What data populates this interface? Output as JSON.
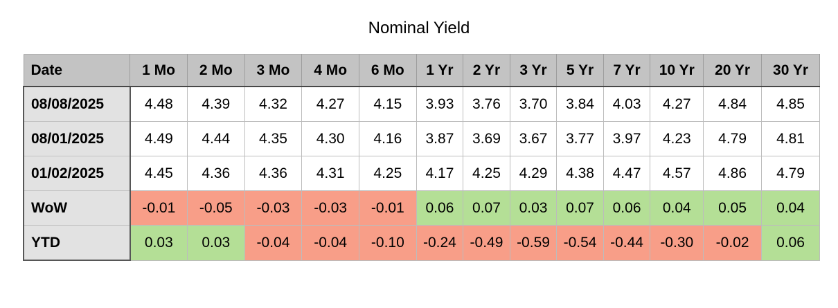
{
  "title": "Nominal Yield",
  "colors": {
    "header_bg": "#c3c3c3",
    "row_header_bg": "#e2e2e2",
    "positive_bg": "#b4df96",
    "negative_bg": "#f89e88",
    "border_dark": "#565656",
    "border_light": "#bcbcbc"
  },
  "chart_data": {
    "type": "table",
    "title": "Nominal Yield",
    "columns": [
      "Date",
      "1 Mo",
      "2 Mo",
      "3 Mo",
      "4 Mo",
      "6 Mo",
      "1 Yr",
      "2 Yr",
      "3 Yr",
      "5 Yr",
      "7 Yr",
      "10 Yr",
      "20 Yr",
      "30 Yr"
    ],
    "rows": [
      {
        "label": "08/08/2025",
        "type": "plain",
        "values": [
          "4.48",
          "4.39",
          "4.32",
          "4.27",
          "4.15",
          "3.93",
          "3.76",
          "3.70",
          "3.84",
          "4.03",
          "4.27",
          "4.84",
          "4.85"
        ]
      },
      {
        "label": "08/01/2025",
        "type": "plain",
        "values": [
          "4.49",
          "4.44",
          "4.35",
          "4.30",
          "4.16",
          "3.87",
          "3.69",
          "3.67",
          "3.77",
          "3.97",
          "4.23",
          "4.79",
          "4.81"
        ]
      },
      {
        "label": "01/02/2025",
        "type": "plain",
        "values": [
          "4.45",
          "4.36",
          "4.36",
          "4.31",
          "4.25",
          "4.17",
          "4.25",
          "4.29",
          "4.38",
          "4.47",
          "4.57",
          "4.86",
          "4.79"
        ]
      },
      {
        "label": "WoW",
        "type": "delta",
        "values": [
          "-0.01",
          "-0.05",
          "-0.03",
          "-0.03",
          "-0.01",
          "0.06",
          "0.07",
          "0.03",
          "0.07",
          "0.06",
          "0.04",
          "0.05",
          "0.04"
        ]
      },
      {
        "label": "YTD",
        "type": "delta",
        "values": [
          "0.03",
          "0.03",
          "-0.04",
          "-0.04",
          "-0.10",
          "-0.24",
          "-0.49",
          "-0.59",
          "-0.54",
          "-0.44",
          "-0.30",
          "-0.02",
          "0.06"
        ]
      }
    ]
  }
}
